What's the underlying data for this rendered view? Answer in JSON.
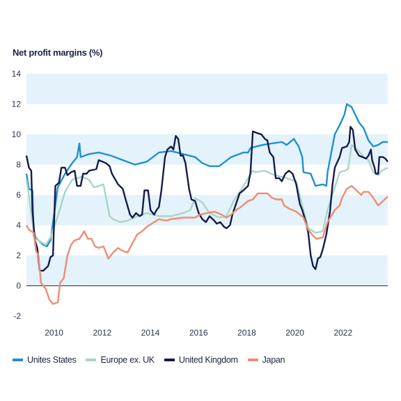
{
  "chart_data": {
    "type": "line",
    "ylabel": "Net profit margins (%)",
    "ylim": [
      -2,
      14
    ],
    "xlim": [
      2009.0,
      2024.0
    ],
    "yticks": [
      "14",
      "12",
      "10",
      "8",
      "6",
      "4",
      "2",
      "0",
      "-2"
    ],
    "xticks": [
      "2010",
      "2012",
      "2014",
      "2016",
      "2018",
      "2020",
      "2022"
    ],
    "grid": "alternating horizontal bands",
    "legend_position": "bottom",
    "series": [
      {
        "name": "Unites States",
        "color": "#1e8fd0",
        "points": [
          [
            2009.0,
            7.4
          ],
          [
            2009.1,
            6.4
          ],
          [
            2009.25,
            6.3
          ],
          [
            2009.3,
            3.3
          ],
          [
            2009.5,
            3.0
          ],
          [
            2009.7,
            2.7
          ],
          [
            2009.85,
            2.6
          ],
          [
            2010.0,
            3.0
          ],
          [
            2010.3,
            6.5
          ],
          [
            2010.6,
            7.4
          ],
          [
            2010.9,
            8.1
          ],
          [
            2011.1,
            8.5
          ],
          [
            2011.2,
            9.4
          ],
          [
            2011.25,
            8.5
          ],
          [
            2011.6,
            8.7
          ],
          [
            2012.0,
            8.8
          ],
          [
            2012.5,
            8.6
          ],
          [
            2013.0,
            8.3
          ],
          [
            2013.5,
            8.0
          ],
          [
            2014.0,
            8.2
          ],
          [
            2014.5,
            8.8
          ],
          [
            2015.0,
            8.9
          ],
          [
            2015.5,
            8.7
          ],
          [
            2016.0,
            8.5
          ],
          [
            2016.3,
            8.1
          ],
          [
            2016.6,
            7.9
          ],
          [
            2017.0,
            7.9
          ],
          [
            2017.5,
            8.5
          ],
          [
            2018.0,
            8.8
          ],
          [
            2018.2,
            8.8
          ],
          [
            2018.3,
            9.1
          ],
          [
            2018.8,
            9.3
          ],
          [
            2019.2,
            9.4
          ],
          [
            2019.6,
            9.5
          ],
          [
            2019.8,
            9.3
          ],
          [
            2020.1,
            9.7
          ],
          [
            2020.3,
            9.2
          ],
          [
            2020.45,
            8.5
          ],
          [
            2020.5,
            7.5
          ],
          [
            2020.8,
            7.4
          ],
          [
            2021.0,
            6.6
          ],
          [
            2021.3,
            6.7
          ],
          [
            2021.45,
            6.6
          ],
          [
            2021.5,
            7.5
          ],
          [
            2021.8,
            10.0
          ],
          [
            2022.0,
            10.6
          ],
          [
            2022.2,
            11.3
          ],
          [
            2022.3,
            12.0
          ],
          [
            2022.5,
            11.8
          ],
          [
            2022.8,
            10.8
          ],
          [
            2023.0,
            10.4
          ],
          [
            2023.2,
            9.6
          ],
          [
            2023.4,
            9.2
          ],
          [
            2023.6,
            9.3
          ],
          [
            2023.8,
            9.5
          ],
          [
            2024.0,
            9.5
          ]
        ]
      },
      {
        "name": "Europe ex. UK",
        "color": "#a9d6c4",
        "points": [
          [
            2009.0,
            7.0
          ],
          [
            2009.1,
            6.0
          ],
          [
            2009.3,
            3.5
          ],
          [
            2009.5,
            3.0
          ],
          [
            2009.8,
            2.7
          ],
          [
            2010.0,
            3.2
          ],
          [
            2010.3,
            4.6
          ],
          [
            2010.6,
            6.2
          ],
          [
            2010.9,
            7.0
          ],
          [
            2011.3,
            7.2
          ],
          [
            2011.6,
            7.0
          ],
          [
            2011.8,
            6.5
          ],
          [
            2012.2,
            6.7
          ],
          [
            2012.45,
            4.6
          ],
          [
            2012.6,
            4.4
          ],
          [
            2012.9,
            4.2
          ],
          [
            2013.2,
            4.3
          ],
          [
            2013.6,
            4.6
          ],
          [
            2014.0,
            4.8
          ],
          [
            2014.5,
            4.6
          ],
          [
            2015.0,
            4.6
          ],
          [
            2015.5,
            4.8
          ],
          [
            2015.8,
            5.0
          ],
          [
            2016.0,
            5.8
          ],
          [
            2016.3,
            5.5
          ],
          [
            2016.6,
            4.8
          ],
          [
            2017.0,
            4.5
          ],
          [
            2017.3,
            4.6
          ],
          [
            2017.6,
            5.6
          ],
          [
            2017.9,
            6.3
          ],
          [
            2018.2,
            7.1
          ],
          [
            2018.4,
            7.6
          ],
          [
            2018.5,
            7.5
          ],
          [
            2018.9,
            7.6
          ],
          [
            2019.3,
            7.3
          ],
          [
            2019.6,
            7.2
          ],
          [
            2020.0,
            7.0
          ],
          [
            2020.2,
            6.9
          ],
          [
            2020.5,
            5.0
          ],
          [
            2020.7,
            3.8
          ],
          [
            2021.0,
            3.5
          ],
          [
            2021.3,
            3.6
          ],
          [
            2021.5,
            5.0
          ],
          [
            2021.8,
            6.5
          ],
          [
            2022.0,
            7.5
          ],
          [
            2022.2,
            7.6
          ],
          [
            2022.35,
            7.7
          ],
          [
            2022.5,
            9.3
          ],
          [
            2022.8,
            8.9
          ],
          [
            2023.0,
            8.5
          ],
          [
            2023.2,
            8.3
          ],
          [
            2023.4,
            7.5
          ],
          [
            2023.6,
            7.3
          ],
          [
            2023.75,
            7.6
          ],
          [
            2024.0,
            7.8
          ]
        ]
      },
      {
        "name": "United Kingdom",
        "color": "#141a4b",
        "points": [
          [
            2009.0,
            8.6
          ],
          [
            2009.1,
            7.8
          ],
          [
            2009.2,
            7.6
          ],
          [
            2009.25,
            5.0
          ],
          [
            2009.35,
            3.0
          ],
          [
            2009.45,
            2.5
          ],
          [
            2009.55,
            1.0
          ],
          [
            2009.7,
            1.0
          ],
          [
            2009.9,
            1.3
          ],
          [
            2010.0,
            1.9
          ],
          [
            2010.1,
            2.0
          ],
          [
            2010.2,
            6.6
          ],
          [
            2010.35,
            6.8
          ],
          [
            2010.45,
            7.8
          ],
          [
            2010.6,
            7.8
          ],
          [
            2010.7,
            7.3
          ],
          [
            2010.85,
            7.5
          ],
          [
            2011.0,
            7.6
          ],
          [
            2011.1,
            6.6
          ],
          [
            2011.25,
            6.6
          ],
          [
            2011.35,
            7.4
          ],
          [
            2011.5,
            7.4
          ],
          [
            2011.6,
            7.6
          ],
          [
            2011.9,
            7.7
          ],
          [
            2012.0,
            8.3
          ],
          [
            2012.3,
            8.1
          ],
          [
            2012.45,
            7.9
          ],
          [
            2012.55,
            7.4
          ],
          [
            2012.8,
            6.7
          ],
          [
            2013.0,
            6.4
          ],
          [
            2013.1,
            5.8
          ],
          [
            2013.3,
            4.7
          ],
          [
            2013.4,
            4.5
          ],
          [
            2013.55,
            4.8
          ],
          [
            2013.7,
            4.6
          ],
          [
            2013.8,
            4.7
          ],
          [
            2013.9,
            6.3
          ],
          [
            2014.05,
            6.3
          ],
          [
            2014.15,
            5.0
          ],
          [
            2014.3,
            4.7
          ],
          [
            2014.4,
            5.0
          ],
          [
            2014.5,
            5.2
          ],
          [
            2014.6,
            6.3
          ],
          [
            2014.75,
            8.5
          ],
          [
            2014.85,
            9.0
          ],
          [
            2015.0,
            9.2
          ],
          [
            2015.1,
            9.0
          ],
          [
            2015.2,
            9.9
          ],
          [
            2015.3,
            9.7
          ],
          [
            2015.4,
            8.6
          ],
          [
            2015.5,
            8.6
          ],
          [
            2015.6,
            8.1
          ],
          [
            2015.75,
            6.4
          ],
          [
            2015.85,
            5.7
          ],
          [
            2016.0,
            5.6
          ],
          [
            2016.15,
            4.8
          ],
          [
            2016.3,
            4.4
          ],
          [
            2016.45,
            4.2
          ],
          [
            2016.6,
            4.6
          ],
          [
            2016.8,
            4.3
          ],
          [
            2016.9,
            4.1
          ],
          [
            2017.05,
            4.2
          ],
          [
            2017.2,
            3.9
          ],
          [
            2017.3,
            3.8
          ],
          [
            2017.45,
            4.0
          ],
          [
            2017.55,
            4.7
          ],
          [
            2017.7,
            5.4
          ],
          [
            2017.85,
            6.1
          ],
          [
            2018.0,
            6.3
          ],
          [
            2018.2,
            6.6
          ],
          [
            2018.3,
            7.5
          ],
          [
            2018.4,
            10.2
          ],
          [
            2018.55,
            10.1
          ],
          [
            2018.75,
            10.0
          ],
          [
            2018.9,
            9.7
          ],
          [
            2019.0,
            9.6
          ],
          [
            2019.1,
            8.8
          ],
          [
            2019.25,
            8.5
          ],
          [
            2019.35,
            7.1
          ],
          [
            2019.5,
            7.1
          ],
          [
            2019.6,
            6.9
          ],
          [
            2019.75,
            7.4
          ],
          [
            2019.9,
            7.6
          ],
          [
            2020.05,
            7.4
          ],
          [
            2020.2,
            6.7
          ],
          [
            2020.35,
            5.4
          ],
          [
            2020.45,
            5.0
          ],
          [
            2020.6,
            4.2
          ],
          [
            2020.7,
            3.5
          ],
          [
            2020.8,
            2.0
          ],
          [
            2020.9,
            1.3
          ],
          [
            2021.0,
            1.1
          ],
          [
            2021.1,
            1.8
          ],
          [
            2021.2,
            1.9
          ],
          [
            2021.3,
            2.4
          ],
          [
            2021.45,
            3.4
          ],
          [
            2021.6,
            4.9
          ],
          [
            2021.7,
            6.6
          ],
          [
            2021.8,
            7.8
          ],
          [
            2022.0,
            8.5
          ],
          [
            2022.1,
            9.1
          ],
          [
            2022.3,
            9.2
          ],
          [
            2022.4,
            9.5
          ],
          [
            2022.45,
            10.5
          ],
          [
            2022.55,
            10.3
          ],
          [
            2022.65,
            9.0
          ],
          [
            2022.8,
            8.6
          ],
          [
            2022.95,
            8.5
          ],
          [
            2023.1,
            8.4
          ],
          [
            2023.2,
            8.6
          ],
          [
            2023.3,
            9.0
          ],
          [
            2023.35,
            8.3
          ],
          [
            2023.45,
            7.8
          ],
          [
            2023.5,
            7.4
          ],
          [
            2023.6,
            7.4
          ],
          [
            2023.65,
            8.5
          ],
          [
            2023.8,
            8.5
          ],
          [
            2023.9,
            8.4
          ],
          [
            2024.0,
            8.2
          ]
        ]
      },
      {
        "name": "Japan",
        "color": "#ef8c72",
        "points": [
          [
            2009.0,
            4.0
          ],
          [
            2009.1,
            3.7
          ],
          [
            2009.3,
            3.5
          ],
          [
            2009.4,
            2.3
          ],
          [
            2009.5,
            2.0
          ],
          [
            2009.6,
            0.2
          ],
          [
            2009.8,
            -0.2
          ],
          [
            2009.95,
            -0.9
          ],
          [
            2010.1,
            -1.2
          ],
          [
            2010.3,
            -1.1
          ],
          [
            2010.4,
            0.2
          ],
          [
            2010.55,
            0.5
          ],
          [
            2010.7,
            2.0
          ],
          [
            2010.85,
            2.7
          ],
          [
            2011.0,
            3.0
          ],
          [
            2011.2,
            3.1
          ],
          [
            2011.4,
            3.6
          ],
          [
            2011.55,
            3.1
          ],
          [
            2011.7,
            3.1
          ],
          [
            2011.85,
            2.6
          ],
          [
            2012.0,
            2.5
          ],
          [
            2012.2,
            2.6
          ],
          [
            2012.4,
            1.8
          ],
          [
            2012.6,
            2.2
          ],
          [
            2012.8,
            2.5
          ],
          [
            2013.0,
            2.3
          ],
          [
            2013.2,
            2.2
          ],
          [
            2013.4,
            2.8
          ],
          [
            2013.6,
            3.4
          ],
          [
            2013.8,
            3.6
          ],
          [
            2014.0,
            3.9
          ],
          [
            2014.3,
            4.2
          ],
          [
            2014.5,
            4.4
          ],
          [
            2014.8,
            4.3
          ],
          [
            2015.0,
            4.4
          ],
          [
            2015.5,
            4.5
          ],
          [
            2016.0,
            4.5
          ],
          [
            2016.2,
            4.7
          ],
          [
            2016.5,
            4.8
          ],
          [
            2016.8,
            4.9
          ],
          [
            2017.1,
            4.7
          ],
          [
            2017.3,
            4.5
          ],
          [
            2017.5,
            4.7
          ],
          [
            2017.7,
            5.0
          ],
          [
            2017.9,
            5.2
          ],
          [
            2018.2,
            5.6
          ],
          [
            2018.4,
            5.7
          ],
          [
            2018.6,
            6.1
          ],
          [
            2018.8,
            6.1
          ],
          [
            2019.0,
            6.1
          ],
          [
            2019.2,
            5.8
          ],
          [
            2019.4,
            5.7
          ],
          [
            2019.6,
            5.7
          ],
          [
            2019.7,
            5.3
          ],
          [
            2019.9,
            5.1
          ],
          [
            2020.2,
            4.9
          ],
          [
            2020.5,
            4.5
          ],
          [
            2020.7,
            3.7
          ],
          [
            2020.9,
            3.3
          ],
          [
            2021.05,
            3.1
          ],
          [
            2021.3,
            3.2
          ],
          [
            2021.5,
            4.2
          ],
          [
            2021.8,
            5.0
          ],
          [
            2022.0,
            5.3
          ],
          [
            2022.1,
            5.8
          ],
          [
            2022.3,
            6.4
          ],
          [
            2022.5,
            6.6
          ],
          [
            2022.7,
            6.3
          ],
          [
            2022.9,
            6.0
          ],
          [
            2023.0,
            6.2
          ],
          [
            2023.2,
            6.2
          ],
          [
            2023.4,
            5.8
          ],
          [
            2023.6,
            5.3
          ],
          [
            2023.8,
            5.6
          ],
          [
            2024.0,
            5.9
          ]
        ]
      }
    ]
  }
}
